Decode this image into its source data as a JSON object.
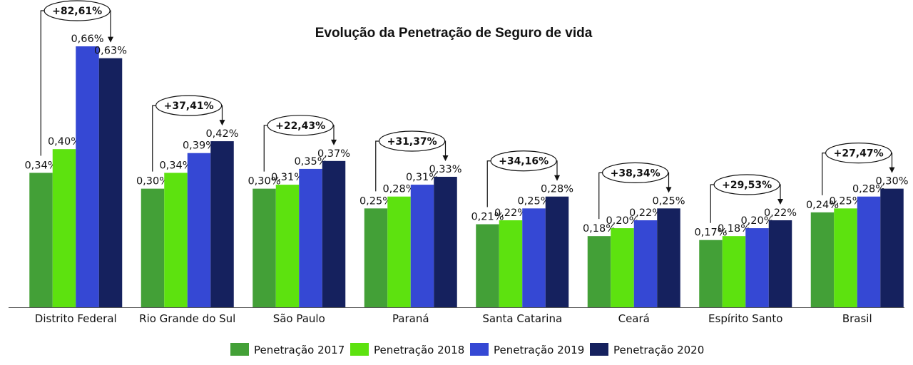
{
  "chart_data": {
    "type": "bar",
    "title": "Evolução da Penetração de Seguro de vida",
    "categories": [
      "Distrito Federal",
      "Rio Grande do Sul",
      "São Paulo",
      "Paraná",
      "Santa Catarina",
      "Ceará",
      "Espírito Santo",
      "Brasil"
    ],
    "series": [
      {
        "name": "Penetração 2017",
        "color": "#43A037",
        "values": [
          0.34,
          0.3,
          0.3,
          0.25,
          0.21,
          0.18,
          0.17,
          0.24
        ],
        "labels": [
          "0,34%",
          "0,30%",
          "0,30%",
          "0,25%",
          "0,21%",
          "0,18%",
          "0,17%",
          "0,24%"
        ]
      },
      {
        "name": "Penetração 2018",
        "color": "#5DE20F",
        "values": [
          0.4,
          0.34,
          0.31,
          0.28,
          0.22,
          0.2,
          0.18,
          0.25
        ],
        "labels": [
          "0,40%",
          "0,34%",
          "0,31%",
          "0,28%",
          "0,22%",
          "0,20%",
          "0,18%",
          "0,25%"
        ]
      },
      {
        "name": "Penetração 2019",
        "color": "#3548D4",
        "values": [
          0.66,
          0.39,
          0.35,
          0.31,
          0.25,
          0.22,
          0.2,
          0.28
        ],
        "labels": [
          "0,66%",
          "0,39%",
          "0,35%",
          "0,31%",
          "0,25%",
          "0,22%",
          "0,20%",
          "0,28%"
        ]
      },
      {
        "name": "Penetração 2020",
        "color": "#15215E",
        "values": [
          0.63,
          0.42,
          0.37,
          0.33,
          0.28,
          0.25,
          0.22,
          0.3
        ],
        "labels": [
          "0,63%",
          "0,42%",
          "0,37%",
          "0,33%",
          "0,28%",
          "0,25%",
          "0,22%",
          "0,30%"
        ]
      }
    ],
    "growth_annotations": [
      "+82,61%",
      "+37,41%",
      "+22,43%",
      "+31,37%",
      "+34,16%",
      "+38,34%",
      "+29,53%",
      "+27,47%"
    ],
    "ylim": [
      0,
      0.66
    ],
    "grid": false,
    "legend_position": "bottom"
  }
}
